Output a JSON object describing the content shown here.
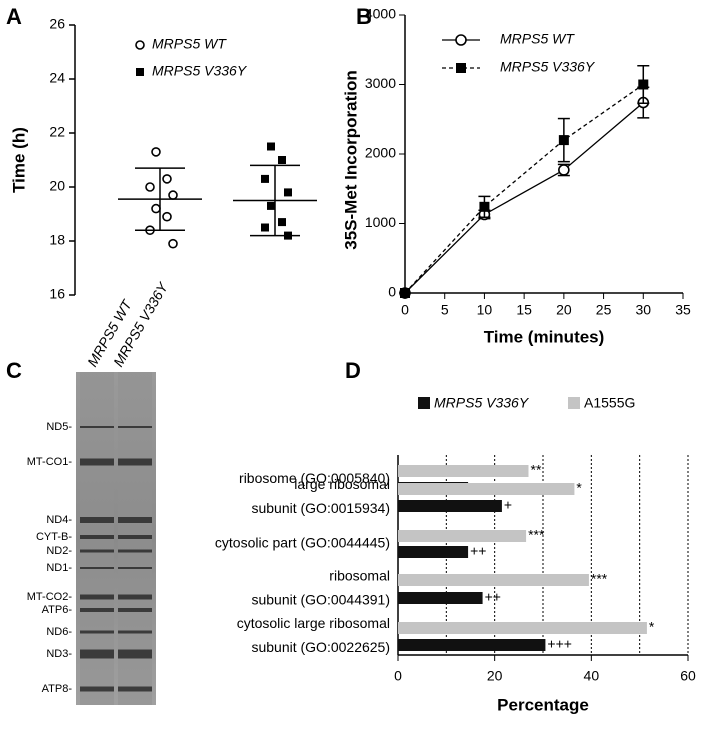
{
  "chart_data": [
    {
      "type": "strip",
      "panel": "A",
      "ylabel": "Time (h)",
      "categories": [
        "MRPS5 WT",
        "MRPS5 V336Y"
      ],
      "series": [
        {
          "name": "MRPS5 WT",
          "marker": "open-circle",
          "color": "#000000",
          "values": [
            21.3,
            20.3,
            20.0,
            19.7,
            19.2,
            18.9,
            18.4,
            17.9
          ],
          "mean": 19.55,
          "sd_low": 18.4,
          "sd_high": 20.7
        },
        {
          "name": "MRPS5 V336Y",
          "marker": "square",
          "color": "#000000",
          "values": [
            21.5,
            21.0,
            20.3,
            19.8,
            19.3,
            18.7,
            18.5,
            18.2
          ],
          "mean": 19.5,
          "sd_low": 18.2,
          "sd_high": 20.8
        }
      ],
      "ylim": [
        16,
        26
      ],
      "yticks": [
        16,
        18,
        20,
        22,
        24,
        26
      ]
    },
    {
      "type": "line",
      "panel": "B",
      "ylabel": "35S-Met Incorporation",
      "xlabel": "Time (minutes)",
      "x": [
        0,
        10,
        20,
        30
      ],
      "series": [
        {
          "name": "MRPS5 WT",
          "marker": "open-circle",
          "dash": false,
          "color": "#000000",
          "values": [
            0,
            1130,
            1770,
            2740
          ],
          "errors": [
            0,
            60,
            80,
            220
          ]
        },
        {
          "name": "MRPS5 V336Y",
          "marker": "square",
          "dash": true,
          "color": "#000000",
          "values": [
            0,
            1240,
            2200,
            3000
          ],
          "errors": [
            0,
            150,
            310,
            270
          ]
        }
      ],
      "xlim": [
        0,
        35
      ],
      "xticks": [
        0,
        5,
        10,
        15,
        20,
        25,
        30,
        35
      ],
      "ylim": [
        0,
        4000
      ],
      "yticks": [
        0,
        1000,
        2000,
        3000,
        4000
      ]
    },
    {
      "type": "hbar",
      "panel": "D",
      "xlabel": "Percentage",
      "categories": [
        [
          "ribosome (GO:0005840)"
        ],
        [
          "large ribosomal",
          "subunit (GO:0015934)"
        ],
        [
          "cytosolic part (GO:0044445)"
        ],
        [
          "ribosomal",
          "subunit (GO:0044391)"
        ],
        [
          "cytosolic large ribosomal",
          "subunit  (GO:0022625)"
        ]
      ],
      "series": [
        {
          "name": "MRPS5 V336Y",
          "color": "#111111",
          "values": [
            14.5,
            21.5,
            14.5,
            17.5,
            30.5
          ],
          "significance": [
            "+",
            "+",
            "++",
            "++",
            "+++"
          ]
        },
        {
          "name": "A1555G",
          "color": "#c4c4c4",
          "values": [
            27,
            36.5,
            26.5,
            39.5,
            51.5
          ],
          "significance": [
            "**",
            "*",
            "***",
            "***",
            "*"
          ]
        }
      ],
      "xlim": [
        0,
        60
      ],
      "xticks": [
        0,
        20,
        40,
        60
      ],
      "xgrid": [
        10,
        20,
        30,
        40,
        50,
        60
      ]
    }
  ],
  "gel": {
    "panel": "C",
    "lanes": [
      "MRPS5 WT",
      "MRPS5 V336Y"
    ],
    "bands": [
      "ND5-",
      "MT-CO1-",
      "ND4-",
      "CYT-B-",
      "ND2-",
      "ND1-",
      "MT-CO2-",
      "ATP6-",
      "ND6-",
      "ND3-",
      "ATP8-"
    ]
  }
}
